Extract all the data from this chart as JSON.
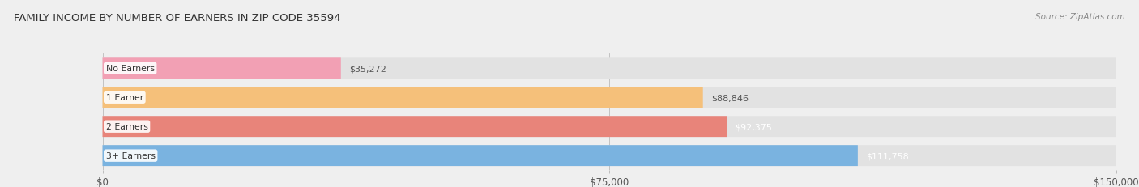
{
  "title": "FAMILY INCOME BY NUMBER OF EARNERS IN ZIP CODE 35594",
  "source": "Source: ZipAtlas.com",
  "categories": [
    "No Earners",
    "1 Earner",
    "2 Earners",
    "3+ Earners"
  ],
  "values": [
    35272,
    88846,
    92375,
    111758
  ],
  "bar_colors": [
    "#f2a0b4",
    "#f5c07a",
    "#e8847a",
    "#7ab3e0"
  ],
  "value_label_colors": [
    "#555555",
    "#555555",
    "#ffffff",
    "#ffffff"
  ],
  "xlim": [
    0,
    150000
  ],
  "xticks": [
    0,
    75000,
    150000
  ],
  "xtick_labels": [
    "$0",
    "$75,000",
    "$150,000"
  ],
  "background_color": "#efefef",
  "bar_bg_color": "#e2e2e2",
  "figsize": [
    14.06,
    2.32
  ],
  "dpi": 100
}
